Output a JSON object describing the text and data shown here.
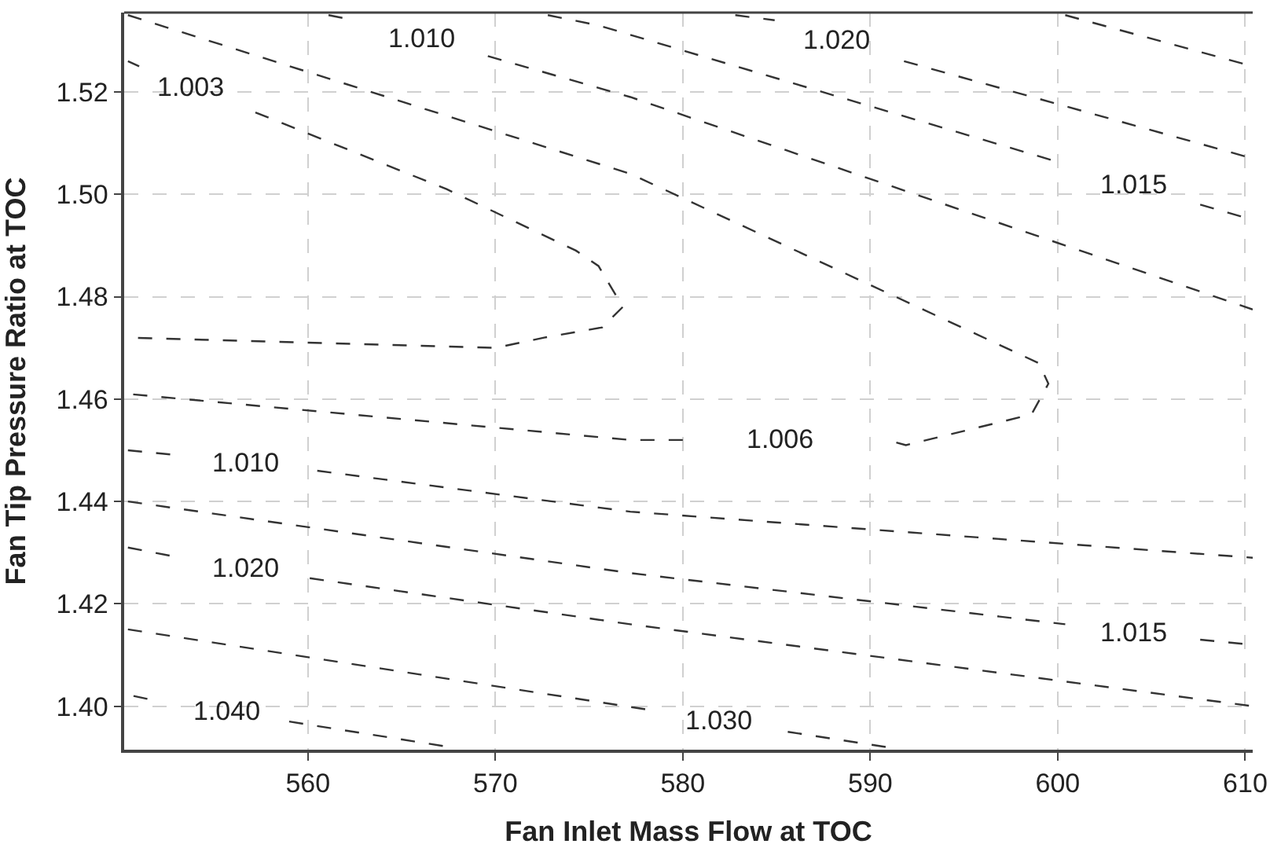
{
  "chart_data": {
    "type": "line",
    "xlabel": "Fan Inlet Mass Flow at TOC",
    "ylabel": "Fan Tip Pressure Ratio at TOC",
    "xlim": [
      550.2,
      610.4
    ],
    "ylim": [
      1.3915,
      1.5355
    ],
    "xticks": [
      560,
      570,
      580,
      590,
      600,
      610
    ],
    "yticks": [
      {
        "value": 1.4,
        "label": "1.40"
      },
      {
        "value": 1.42,
        "label": "1.42"
      },
      {
        "value": 1.44,
        "label": "1.44"
      },
      {
        "value": 1.46,
        "label": "1.46"
      },
      {
        "value": 1.48,
        "label": "1.48"
      },
      {
        "value": 1.5,
        "label": "1.50"
      },
      {
        "value": 1.52,
        "label": "1.52"
      }
    ],
    "grid": true,
    "marker": "none",
    "line_style": "dashed",
    "series": [
      {
        "color": "#333333",
        "x": [
          550.4,
          551.0,
          553.8,
          557.2,
          567.4,
          574.3,
          575.5,
          576.8,
          575.7,
          572.6,
          570.0,
          550.4
        ],
        "values": [
          1.526,
          1.525,
          null,
          1.516,
          1.501,
          1.489,
          1.486,
          1.478,
          1.474,
          1.472,
          1.47,
          1.472
        ]
      },
      {
        "color": "#333333",
        "x": [
          550.4,
          577.2,
          599.0,
          599.5,
          598.6,
          591.9,
          590.9,
          585.2,
          580.0,
          577.2,
          550.4
        ],
        "values": [
          1.535,
          1.504,
          1.467,
          1.463,
          1.457,
          1.451,
          1.452,
          null,
          1.452,
          1.452,
          1.461
        ]
      },
      {
        "color": "#333333",
        "x": [
          561.1,
          562.5,
          566.1,
          569.6,
          577.2,
          610.4
        ],
        "values": [
          1.535,
          1.534,
          null,
          1.527,
          1.519,
          1.4775
        ]
      },
      {
        "color": "#333333",
        "x": [
          550.4,
          553.2,
          556.7,
          560.5,
          577.2,
          606.7,
          610.4
        ],
        "values": [
          1.45,
          1.449,
          null,
          1.446,
          1.438,
          1.43,
          1.429
        ]
      },
      {
        "color": "#333333",
        "x": [
          572.8,
          575.5,
          600.3,
          604.1,
          607.6,
          610.4
        ],
        "values": [
          1.535,
          1.533,
          1.506,
          null,
          1.498,
          1.495
        ]
      },
      {
        "color": "#333333",
        "x": [
          550.4,
          577.2,
          600.4,
          604.1,
          607.6,
          610.4
        ],
        "values": [
          1.44,
          1.426,
          1.416,
          null,
          1.413,
          1.412
        ]
      },
      {
        "color": "#333333",
        "x": [
          582.8,
          584.9,
          588.2,
          591.8,
          610.4
        ],
        "values": [
          1.535,
          1.534,
          null,
          1.526,
          1.507
        ]
      },
      {
        "color": "#333333",
        "x": [
          600.4,
          610.4
        ],
        "values": [
          1.535,
          1.525
        ]
      },
      {
        "color": "#333333",
        "x": [
          550.4,
          553.2,
          556.7,
          560.1,
          577.2,
          610.4
        ],
        "values": [
          1.431,
          1.429,
          null,
          1.425,
          1.416,
          1.4
        ]
      },
      {
        "color": "#333333",
        "x": [
          550.4,
          578.7,
          581.9,
          585.6,
          590.9
        ],
        "values": [
          1.415,
          1.399,
          null,
          1.395,
          1.392
        ]
      },
      {
        "color": "#333333",
        "x": [
          550.7,
          552.0,
          555.7,
          559.0,
          567.6
        ],
        "values": [
          1.402,
          1.401,
          null,
          1.397,
          1.392
        ]
      }
    ],
    "annotations": [
      "1.003",
      "1.006",
      "1.010",
      "1.010",
      "1.015",
      "1.015",
      "1.020",
      "1.020",
      "1.030",
      "1.040"
    ]
  }
}
